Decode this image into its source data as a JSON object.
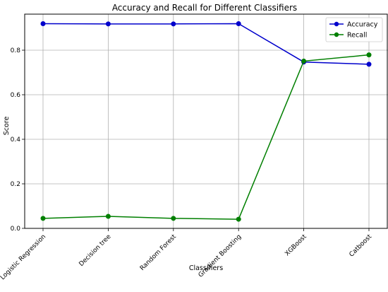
{
  "chart_data": {
    "type": "line",
    "title": "Accuracy and Recall for Different Classifiers",
    "xlabel": "Classifiers",
    "ylabel": "Score",
    "categories": [
      "Logistic Regression",
      "Decision tree",
      "Random Forest",
      "Gradient Boosting",
      "XGBoost",
      "Catboost"
    ],
    "ylim": [
      0,
      0.95
    ],
    "yticks": [
      0.0,
      0.2,
      0.4,
      0.6,
      0.8
    ],
    "ytick_labels": [
      "0.0",
      "0.2",
      "0.4",
      "0.6",
      "0.8"
    ],
    "grid": true,
    "legend": "top-right",
    "series": [
      {
        "name": "Accuracy",
        "color": "#0000cc",
        "values": [
          0.919,
          0.918,
          0.918,
          0.919,
          0.747,
          0.737
        ]
      },
      {
        "name": "Recall",
        "color": "#007f00",
        "values": [
          0.045,
          0.054,
          0.045,
          0.041,
          0.751,
          0.779
        ]
      }
    ]
  }
}
